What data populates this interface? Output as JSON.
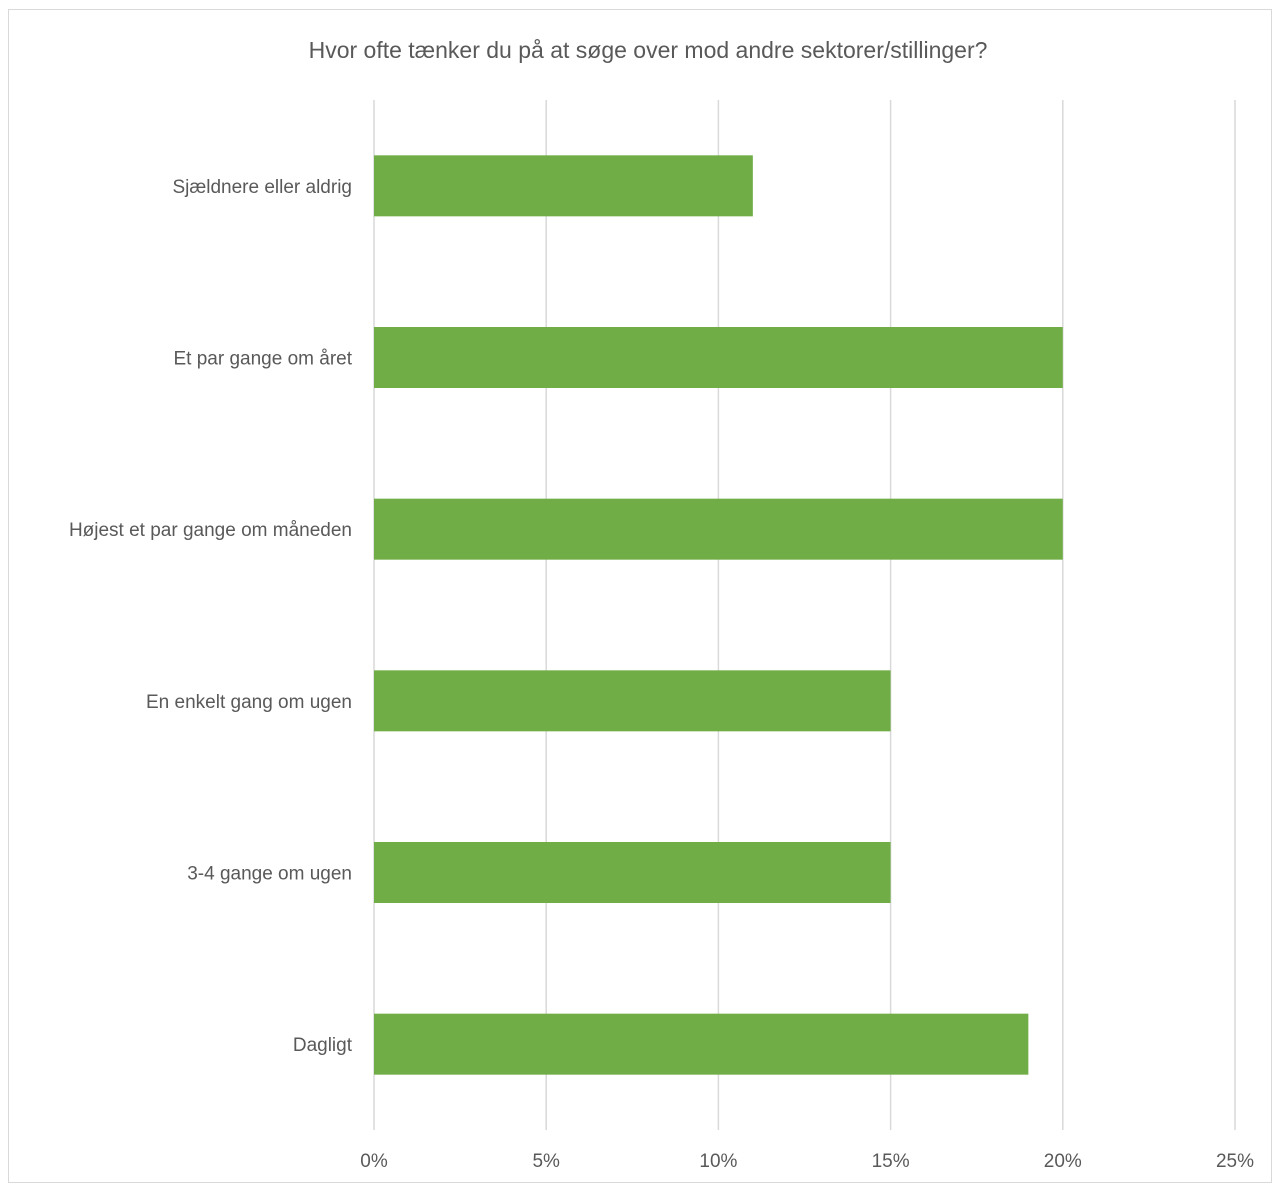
{
  "chart_data": {
    "type": "bar",
    "orientation": "horizontal",
    "title": "Hvor ofte tænker du på at søge over mod andre sektorer/stillinger?",
    "categories": [
      "Sjældnere eller aldrig",
      "Et par gange om året",
      "Højest et par gange om måneden",
      "En enkelt gang om ugen",
      "3-4 gange om ugen",
      "Dagligt"
    ],
    "values": [
      0.11,
      0.2,
      0.2,
      0.15,
      0.15,
      0.19
    ],
    "xlim": [
      0,
      0.25
    ],
    "xticks": [
      0,
      0.05,
      0.1,
      0.15,
      0.2,
      0.25
    ],
    "xtick_labels": [
      "0%",
      "5%",
      "10%",
      "15%",
      "20%",
      "25%"
    ],
    "xlabel": "",
    "ylabel": "",
    "grid": "vertical",
    "legend": "none",
    "colors": {
      "bar": "#70ad47",
      "grid": "#d9d9d9",
      "text": "#595959",
      "border": "#d9d9d9"
    }
  }
}
